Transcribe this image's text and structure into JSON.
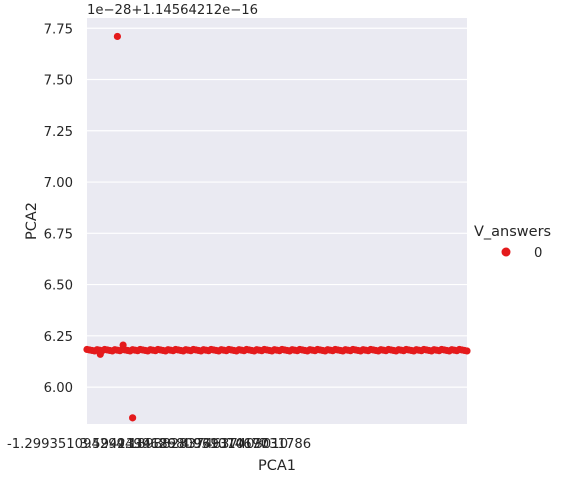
{
  "chart_data": {
    "type": "scatter",
    "x_tick_labels": [
      "-1.299351094299499626",
      "3.594233418980931074677",
      "4.1893828374637403010",
      "4.96931019031786"
    ],
    "offset_text": "1e−28+1.14564212e−16",
    "xlabel": "PCA1",
    "ylabel": "PCA2",
    "ylim": [
      5.82,
      7.8
    ],
    "y_ticks": [
      6.0,
      6.25,
      6.5,
      6.75,
      7.0,
      7.25,
      7.5,
      7.75
    ],
    "y_tick_labels": [
      "6.00",
      "6.25",
      "6.50",
      "6.75",
      "7.00",
      "7.25",
      "7.50",
      "7.75"
    ],
    "grid": true,
    "legend": {
      "title": "V_answers",
      "entries": [
        "0"
      ],
      "placement": "right"
    },
    "series": [
      {
        "name": "0",
        "color": "#e41a1c",
        "outliers": [
          {
            "x": 0.08,
            "y": 7.71
          },
          {
            "x": 0.095,
            "y": 6.205
          },
          {
            "x": 0.12,
            "y": 5.85
          },
          {
            "x": 0.035,
            "y": 6.16
          }
        ],
        "band_y": 6.18,
        "band_x_range": [
          0.0,
          1.0
        ]
      }
    ]
  }
}
